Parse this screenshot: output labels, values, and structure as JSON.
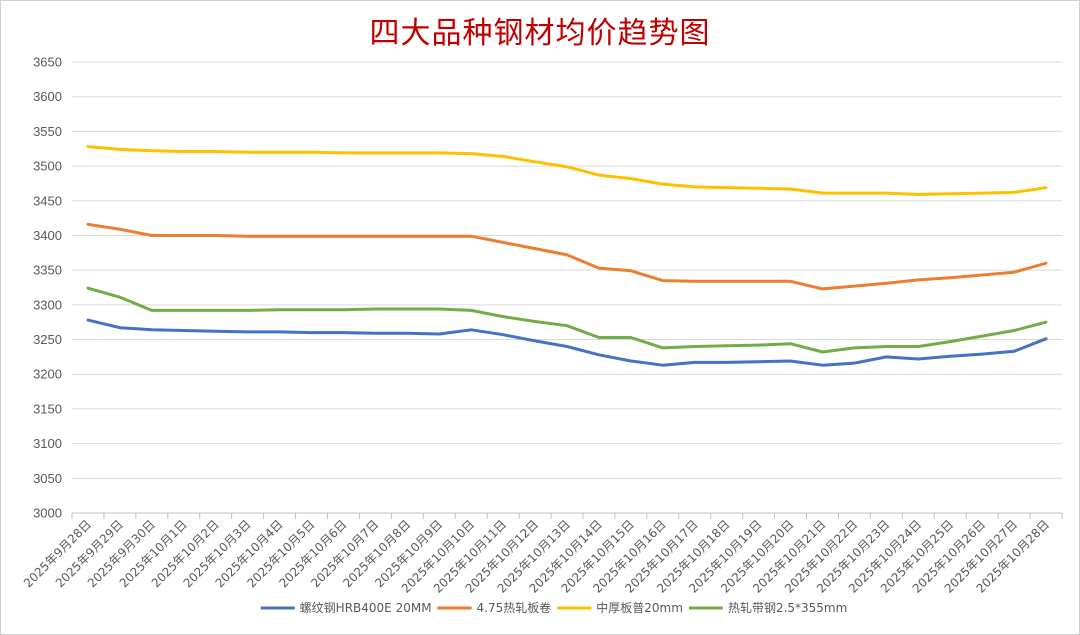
{
  "chart_data": {
    "type": "line",
    "title": "四大品种钢材均价趋势图",
    "xlabel": "",
    "ylabel": "",
    "ylim": [
      3000,
      3650
    ],
    "ytick_step": 50,
    "grid": true,
    "legend_position": "bottom",
    "categories": [
      "2025年9月28日",
      "2025年9月29日",
      "2025年9月30日",
      "2025年10月1日",
      "2025年10月2日",
      "2025年10月3日",
      "2025年10月4日",
      "2025年10月5日",
      "2025年10月6日",
      "2025年10月7日",
      "2025年10月8日",
      "2025年10月9日",
      "2025年10月10日",
      "2025年10月11日",
      "2025年10月12日",
      "2025年10月13日",
      "2025年10月14日",
      "2025年10月15日",
      "2025年10月16日",
      "2025年10月17日",
      "2025年10月18日",
      "2025年10月19日",
      "2025年10月20日",
      "2025年10月21日",
      "2025年10月22日",
      "2025年10月23日",
      "2025年10月24日",
      "2025年10月25日",
      "2025年10月26日",
      "2025年10月27日",
      "2025年10月28日"
    ],
    "series": [
      {
        "name": "螺纹钢HRB400E 20MM",
        "color": "#4472c4",
        "values": [
          3278,
          3267,
          3264,
          3263,
          3262,
          3261,
          3261,
          3260,
          3260,
          3259,
          3259,
          3258,
          3264,
          3257,
          3248,
          3240,
          3228,
          3219,
          3213,
          3217,
          3217,
          3218,
          3219,
          3213,
          3216,
          3225,
          3222,
          3226,
          3229,
          3233,
          3251
        ]
      },
      {
        "name": "4.75热轧板卷",
        "color": "#ed7d31",
        "values": [
          3416,
          3409,
          3400,
          3400,
          3400,
          3399,
          3399,
          3399,
          3399,
          3399,
          3399,
          3399,
          3399,
          3390,
          3381,
          3372,
          3353,
          3349,
          3335,
          3334,
          3334,
          3334,
          3334,
          3323,
          3327,
          3331,
          3336,
          3339,
          3343,
          3347,
          3360
        ]
      },
      {
        "name": "中厚板普20mm",
        "color": "#ffc000",
        "values": [
          3528,
          3524,
          3522,
          3521,
          3521,
          3520,
          3520,
          3520,
          3519,
          3519,
          3519,
          3519,
          3518,
          3514,
          3506,
          3499,
          3487,
          3482,
          3474,
          3470,
          3469,
          3468,
          3467,
          3461,
          3461,
          3461,
          3459,
          3460,
          3461,
          3462,
          3469
        ]
      },
      {
        "name": "热轧带钢2.5*355mm",
        "color": "#70ad47",
        "values": [
          3324,
          3311,
          3292,
          3292,
          3292,
          3292,
          3293,
          3293,
          3293,
          3294,
          3294,
          3294,
          3292,
          3283,
          3276,
          3270,
          3253,
          3253,
          3238,
          3240,
          3241,
          3242,
          3244,
          3232,
          3238,
          3240,
          3240,
          3247,
          3255,
          3263,
          3275
        ]
      }
    ]
  }
}
